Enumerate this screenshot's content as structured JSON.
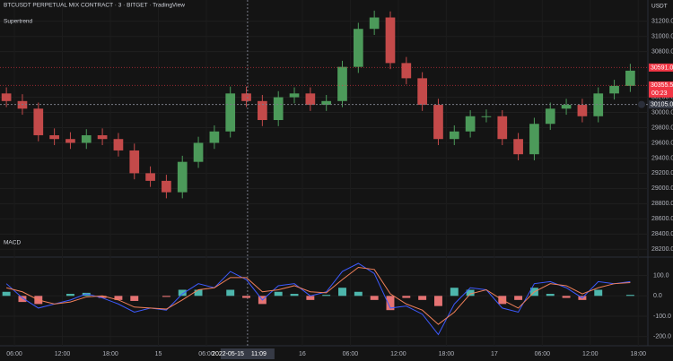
{
  "header": {
    "title": "BTCUSDT PERPETUAL MIX CONTRACT · 3 · BITGET · TradingView",
    "indicator": "Supertrend",
    "currency": "USDT"
  },
  "chart_data": [
    {
      "type": "candlestick",
      "x": [
        5,
        7,
        9,
        11,
        13,
        15,
        17,
        19,
        21,
        23,
        25,
        27,
        29,
        31,
        33,
        35,
        37,
        39,
        41,
        43,
        45,
        47,
        49,
        51,
        53,
        55,
        57,
        59,
        61,
        63,
        65,
        67,
        69,
        71,
        73,
        75,
        77,
        79,
        81,
        83
      ],
      "open": [
        30250,
        30150,
        30050,
        29700,
        29650,
        29600,
        29700,
        29650,
        29500,
        29200,
        29100,
        28950,
        29350,
        29600,
        29750,
        30250,
        30150,
        29900,
        30200,
        30250,
        30100,
        30150,
        30600,
        31100,
        31250,
        30650,
        30450,
        30100,
        29650,
        29750,
        29950,
        29950,
        29650,
        29450,
        29850,
        30050,
        30100,
        29950,
        30250,
        30350
      ],
      "high": [
        30330,
        30240,
        30130,
        29790,
        29740,
        29780,
        29790,
        29730,
        29590,
        29290,
        29180,
        29430,
        29680,
        29830,
        30340,
        30340,
        30230,
        30280,
        30330,
        30330,
        30230,
        30680,
        31180,
        31340,
        31330,
        30730,
        30530,
        30180,
        29830,
        30030,
        30040,
        30030,
        29730,
        29930,
        30130,
        30180,
        30180,
        30330,
        30430,
        30640
      ],
      "low": [
        30070,
        29970,
        29620,
        29570,
        29520,
        29520,
        29570,
        29420,
        29120,
        29020,
        28870,
        28870,
        29270,
        29520,
        29670,
        30070,
        29820,
        29820,
        30120,
        30020,
        30020,
        30070,
        30520,
        31020,
        30570,
        30370,
        30020,
        29570,
        29570,
        29670,
        29870,
        29570,
        29370,
        29370,
        29770,
        29970,
        29870,
        29870,
        30170,
        30270
      ],
      "close": [
        30150,
        30050,
        29700,
        29650,
        29600,
        29700,
        29650,
        29500,
        29200,
        29100,
        28950,
        29350,
        29600,
        29750,
        30250,
        30150,
        29900,
        30200,
        30250,
        30100,
        30150,
        30600,
        31100,
        31250,
        30650,
        30450,
        30100,
        29650,
        29750,
        29950,
        29950,
        29650,
        29450,
        29850,
        30050,
        30100,
        29950,
        30250,
        30350,
        30550
      ],
      "up_color": "#4c9a5a",
      "down_color": "#c44a4a",
      "xlim": [
        4.2,
        85.2
      ],
      "xticks": [
        {
          "value": 6,
          "label": "06:00"
        },
        {
          "value": 12,
          "label": "12:00"
        },
        {
          "value": 18,
          "label": "18:00"
        },
        {
          "value": 24,
          "label": "15"
        },
        {
          "value": 30,
          "label": "06:00"
        },
        {
          "value": 42,
          "label": "16"
        },
        {
          "value": 48,
          "label": "06:00"
        },
        {
          "value": 54,
          "label": "12:00"
        },
        {
          "value": 60,
          "label": "18:00"
        },
        {
          "value": 66,
          "label": "17"
        },
        {
          "value": 72,
          "label": "06:00"
        },
        {
          "value": 78,
          "label": "12:00"
        },
        {
          "value": 84,
          "label": "18:00"
        }
      ],
      "ylim": [
        28120,
        31480
      ],
      "yticks": [
        {
          "value": 31200,
          "label": "31200.0"
        },
        {
          "value": 31000,
          "label": "31000.0"
        },
        {
          "value": 30800,
          "label": "30800.0"
        },
        {
          "value": 30200,
          "label": "30200.0"
        },
        {
          "value": 30000,
          "label": "30000.0"
        },
        {
          "value": 29800,
          "label": "29800.0"
        },
        {
          "value": 29600,
          "label": "29600.0"
        },
        {
          "value": 29400,
          "label": "29400.0"
        },
        {
          "value": 29200,
          "label": "29200.0"
        },
        {
          "value": 29000,
          "label": "29000.0"
        },
        {
          "value": 28800,
          "label": "28800.0"
        },
        {
          "value": 28600,
          "label": "28600.0"
        },
        {
          "value": 28400,
          "label": "28400.0"
        },
        {
          "value": 28200,
          "label": "28200.0"
        }
      ],
      "grid": true,
      "price_tags": [
        {
          "value": 30591.0,
          "label": "30591.0",
          "color": "#f23645"
        },
        {
          "value": 30355.5,
          "label": "30355.5",
          "sub": "00:23",
          "color": "#f23645"
        }
      ],
      "crosshair": {
        "x": 35.15,
        "date": "2022-05-15",
        "time": "11:09",
        "y": 30105.0,
        "y_label": "30105.0"
      }
    },
    {
      "type": "line",
      "title": "MACD",
      "x": [
        5,
        7,
        9,
        11,
        13,
        15,
        17,
        19,
        21,
        23,
        25,
        27,
        29,
        31,
        33,
        35,
        37,
        39,
        41,
        43,
        45,
        47,
        49,
        51,
        53,
        55,
        57,
        59,
        61,
        63,
        65,
        67,
        69,
        71,
        73,
        75,
        77,
        79,
        81,
        83
      ],
      "series": [
        {
          "name": "MACD",
          "color": "#3d5afe",
          "values": [
            60,
            -10,
            -60,
            -40,
            -20,
            10,
            -10,
            -40,
            -80,
            -60,
            -70,
            10,
            60,
            40,
            120,
            80,
            -20,
            50,
            60,
            0,
            20,
            120,
            160,
            110,
            -60,
            -50,
            -90,
            -190,
            -40,
            40,
            30,
            -60,
            -80,
            60,
            70,
            40,
            -10,
            70,
            60,
            70
          ]
        },
        {
          "name": "Signal",
          "color": "#f0805a",
          "values": [
            40,
            20,
            -20,
            -40,
            -30,
            -5,
            0,
            -20,
            -55,
            -60,
            -65,
            -20,
            30,
            40,
            90,
            90,
            20,
            30,
            50,
            20,
            15,
            80,
            140,
            130,
            10,
            -40,
            -70,
            -140,
            -80,
            10,
            30,
            -20,
            -60,
            20,
            60,
            50,
            10,
            40,
            60,
            65
          ]
        }
      ],
      "histogram": [
        20,
        -30,
        -40,
        0,
        10,
        15,
        -10,
        -20,
        -25,
        0,
        -5,
        30,
        30,
        0,
        30,
        -10,
        -40,
        20,
        10,
        -20,
        5,
        40,
        20,
        -20,
        -70,
        -10,
        -20,
        -50,
        40,
        30,
        0,
        -40,
        -20,
        40,
        10,
        -10,
        -20,
        30,
        0,
        5
      ],
      "hist_colors": {
        "positive": "#4db6ac",
        "negative": "#e57373"
      },
      "ylim": [
        -241,
        182
      ],
      "yticks": [
        {
          "value": 100,
          "label": "100.0"
        },
        {
          "value": 0,
          "label": "0.0"
        },
        {
          "value": -100,
          "label": "-100.0"
        },
        {
          "value": -200,
          "label": "-200.0"
        }
      ]
    }
  ]
}
